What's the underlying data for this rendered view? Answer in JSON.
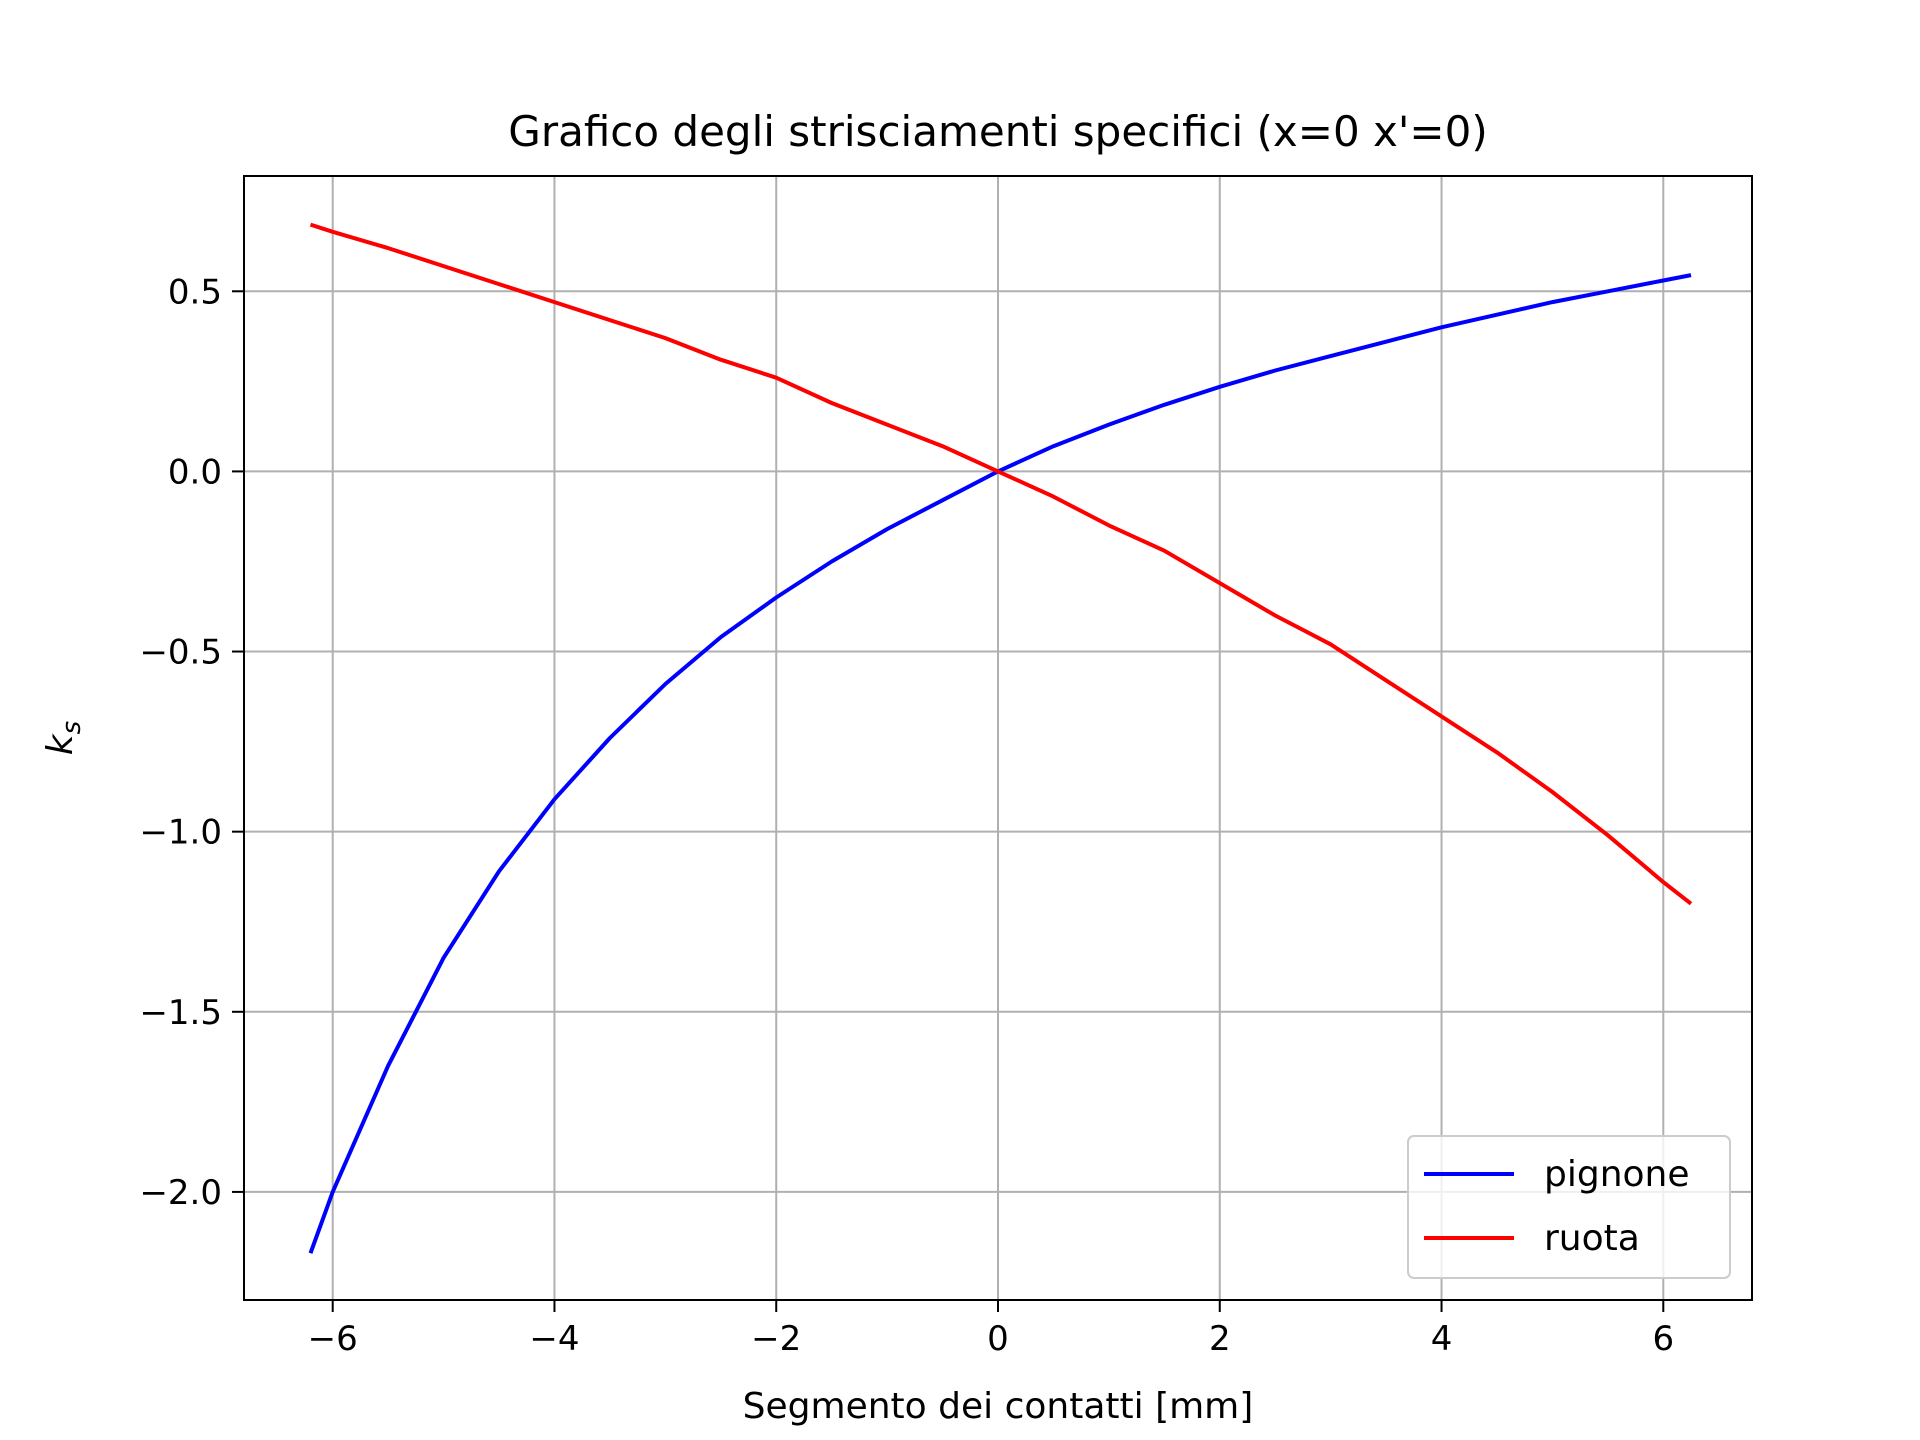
{
  "chart_data": {
    "type": "line",
    "title": "Grafico degli strisciamenti specifici (x=0  x'=0)",
    "xlabel": "Segmento dei contatti [mm]",
    "ylabel_base": "k",
    "ylabel_sub": "s",
    "xlim": [
      -6.8,
      6.8
    ],
    "ylim": [
      -2.3,
      0.82
    ],
    "xticks": [
      -6,
      -4,
      -2,
      0,
      2,
      4,
      6
    ],
    "xtick_labels": [
      "−6",
      "−4",
      "−2",
      "0",
      "2",
      "4",
      "6"
    ],
    "yticks": [
      0.5,
      0.0,
      -0.5,
      -1.0,
      -1.5,
      -2.0
    ],
    "ytick_labels": [
      "0.5",
      "0.0",
      "−0.5",
      "−1.0",
      "−1.5",
      "−2.0"
    ],
    "grid": true,
    "legend_position": "lower-right",
    "series": [
      {
        "name": "pignone",
        "color": "#0000ff",
        "x": [
          -6.2,
          -6.0,
          -5.5,
          -5.0,
          -4.5,
          -4.0,
          -3.5,
          -3.0,
          -2.5,
          -2.0,
          -1.5,
          -1.0,
          -0.5,
          0.0,
          0.5,
          1.0,
          1.5,
          2.0,
          2.5,
          3.0,
          3.5,
          4.0,
          4.5,
          5.0,
          5.5,
          6.0,
          6.25
        ],
        "y": [
          -2.17,
          -2.0,
          -1.65,
          -1.35,
          -1.11,
          -0.91,
          -0.74,
          -0.59,
          -0.46,
          -0.35,
          -0.25,
          -0.16,
          -0.08,
          0.0,
          0.07,
          0.13,
          0.185,
          0.235,
          0.28,
          0.32,
          0.36,
          0.4,
          0.435,
          0.47,
          0.5,
          0.53,
          0.545
        ]
      },
      {
        "name": "ruota",
        "color": "#ff0000",
        "x": [
          -6.2,
          -6.0,
          -5.5,
          -5.0,
          -4.5,
          -4.0,
          -3.5,
          -3.0,
          -2.5,
          -2.0,
          -1.5,
          -1.0,
          -0.5,
          0.0,
          0.5,
          1.0,
          1.5,
          2.0,
          2.5,
          3.0,
          3.5,
          4.0,
          4.5,
          5.0,
          5.5,
          6.0,
          6.25
        ],
        "y": [
          0.685,
          0.665,
          0.62,
          0.57,
          0.52,
          0.47,
          0.42,
          0.37,
          0.31,
          0.26,
          0.19,
          0.13,
          0.07,
          0.0,
          -0.07,
          -0.15,
          -0.22,
          -0.31,
          -0.4,
          -0.48,
          -0.58,
          -0.68,
          -0.78,
          -0.89,
          -1.01,
          -1.14,
          -1.2
        ]
      }
    ]
  }
}
